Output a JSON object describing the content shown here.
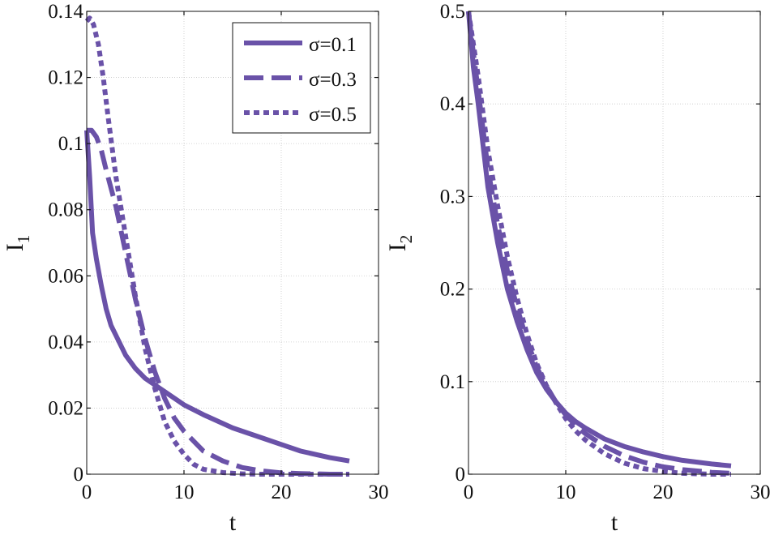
{
  "colors": {
    "line": "#6a52a8"
  },
  "legend": [
    {
      "label": "σ=0.1",
      "style": "solid"
    },
    {
      "label": "σ=0.3",
      "style": "dashed"
    },
    {
      "label": "σ=0.5",
      "style": "dotted"
    }
  ],
  "chart_data": [
    {
      "type": "line",
      "xlabel": "t",
      "ylabel": "I",
      "ylabel_sub": "1",
      "xlim": [
        0,
        30
      ],
      "ylim": [
        0,
        0.14
      ],
      "xticks": [
        "0",
        "10",
        "20",
        "30"
      ],
      "yticks": [
        "0",
        "0.02",
        "0.04",
        "0.06",
        "0.08",
        "0.1",
        "0.12",
        "0.14"
      ],
      "grid": true,
      "legend_position": "top-right",
      "series": [
        {
          "name": "σ=0.1",
          "style": "solid",
          "x": [
            0,
            0.3,
            0.6,
            1,
            1.5,
            2,
            2.5,
            3,
            4,
            5,
            6,
            8,
            10,
            12,
            15,
            18,
            20,
            22,
            25,
            27
          ],
          "y": [
            0.104,
            0.09,
            0.073,
            0.065,
            0.057,
            0.05,
            0.045,
            0.042,
            0.036,
            0.032,
            0.029,
            0.025,
            0.021,
            0.018,
            0.014,
            0.011,
            0.009,
            0.007,
            0.005,
            0.004
          ]
        },
        {
          "name": "σ=0.3",
          "style": "dashed",
          "x": [
            0,
            0.5,
            1,
            1.5,
            2,
            3,
            4,
            5,
            6,
            7,
            8,
            9,
            10,
            12,
            14,
            16,
            18,
            20,
            22,
            25,
            27
          ],
          "y": [
            0.104,
            0.104,
            0.102,
            0.098,
            0.092,
            0.081,
            0.067,
            0.053,
            0.041,
            0.031,
            0.023,
            0.017,
            0.013,
            0.007,
            0.004,
            0.002,
            0.001,
            0.0004,
            0.0002,
            0,
            0
          ]
        },
        {
          "name": "σ=0.5",
          "style": "dotted",
          "x": [
            0,
            0.3,
            0.7,
            1.2,
            1.7,
            2.2,
            3,
            4,
            5,
            6,
            7,
            8,
            9,
            10,
            11,
            12,
            14,
            16,
            18,
            20,
            23,
            27
          ],
          "y": [
            0.137,
            0.138,
            0.136,
            0.13,
            0.12,
            0.108,
            0.09,
            0.072,
            0.054,
            0.038,
            0.026,
            0.016,
            0.01,
            0.006,
            0.003,
            0.0015,
            0.0005,
            0.0001,
            0,
            0,
            0,
            0
          ]
        }
      ]
    },
    {
      "type": "line",
      "xlabel": "t",
      "ylabel": "I",
      "ylabel_sub": "2",
      "xlim": [
        0,
        30
      ],
      "ylim": [
        0,
        0.5
      ],
      "xticks": [
        "0",
        "10",
        "20",
        "30"
      ],
      "yticks": [
        "0",
        "0.1",
        "0.2",
        "0.3",
        "0.4",
        "0.5"
      ],
      "grid": true,
      "series": [
        {
          "name": "σ=0.1",
          "style": "solid",
          "x": [
            0,
            0.5,
            1,
            2,
            3,
            4,
            5,
            6,
            7,
            8,
            9,
            10,
            11,
            12,
            14,
            16,
            18,
            20,
            22,
            25,
            27
          ],
          "y": [
            0.5,
            0.44,
            0.4,
            0.31,
            0.25,
            0.2,
            0.165,
            0.135,
            0.11,
            0.092,
            0.078,
            0.066,
            0.057,
            0.05,
            0.038,
            0.03,
            0.024,
            0.019,
            0.015,
            0.011,
            0.009
          ]
        },
        {
          "name": "σ=0.3",
          "style": "dashed",
          "x": [
            0,
            0.5,
            1,
            2,
            3,
            4,
            5,
            6,
            7,
            8,
            9,
            10,
            11,
            12,
            14,
            16,
            18,
            20,
            22,
            25,
            27
          ],
          "y": [
            0.5,
            0.455,
            0.415,
            0.33,
            0.27,
            0.22,
            0.18,
            0.145,
            0.116,
            0.095,
            0.078,
            0.064,
            0.053,
            0.044,
            0.03,
            0.02,
            0.013,
            0.008,
            0.005,
            0.002,
            0.001
          ]
        },
        {
          "name": "σ=0.5",
          "style": "dotted",
          "x": [
            0,
            0.5,
            1,
            2,
            3,
            4,
            5,
            6,
            7,
            8,
            9,
            10,
            11,
            12,
            14,
            16,
            18,
            20,
            22,
            25,
            27
          ],
          "y": [
            0.5,
            0.465,
            0.43,
            0.35,
            0.29,
            0.235,
            0.19,
            0.152,
            0.12,
            0.096,
            0.077,
            0.06,
            0.047,
            0.037,
            0.022,
            0.012,
            0.006,
            0.003,
            0.001,
            0,
            0
          ]
        }
      ]
    }
  ]
}
